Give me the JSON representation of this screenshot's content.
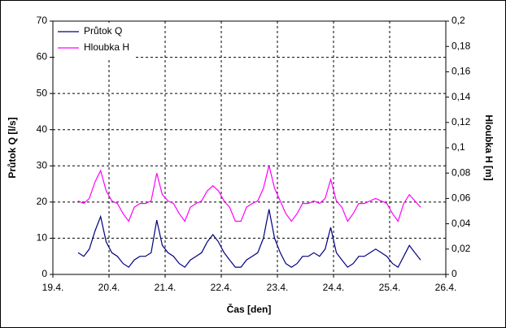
{
  "chart_data": {
    "type": "line",
    "xlabel": "Čas [den]",
    "ylabel": "Průtok Q [l/s]",
    "y2label": "Hloubka H [m]",
    "x": [
      19.45,
      19.55,
      19.65,
      19.75,
      19.85,
      19.95,
      20.05,
      20.15,
      20.25,
      20.35,
      20.45,
      20.55,
      20.65,
      20.75,
      20.85,
      20.95,
      21.05,
      21.15,
      21.25,
      21.35,
      21.45,
      21.55,
      21.65,
      21.75,
      21.85,
      21.95,
      22.05,
      22.15,
      22.25,
      22.35,
      22.45,
      22.55,
      22.65,
      22.75,
      22.85,
      22.95,
      23.05,
      23.15,
      23.25,
      23.35,
      23.45,
      23.55,
      23.65,
      23.75,
      23.85,
      23.95,
      24.05,
      24.15,
      24.25,
      24.35,
      24.45,
      24.55,
      24.65,
      24.75,
      24.85,
      24.95,
      25.05,
      25.15,
      25.25,
      25.35,
      25.45,
      25.55
    ],
    "series": [
      {
        "name": "Průtok Q",
        "color": "#000080",
        "axis": "y",
        "values": [
          6,
          5,
          7,
          12,
          16,
          9,
          6,
          5,
          3,
          2,
          4,
          5,
          5,
          6,
          15,
          8,
          6,
          5,
          3,
          2,
          4,
          5,
          6,
          9,
          11,
          9,
          6,
          4,
          2,
          2,
          4,
          5,
          6,
          10,
          18,
          10,
          6,
          3,
          2,
          3,
          5,
          5,
          6,
          5,
          7,
          13,
          6,
          4,
          2,
          3,
          5,
          5,
          6,
          7,
          6,
          5,
          3,
          2,
          5,
          8,
          6,
          4
        ]
      },
      {
        "name": "Hloubka H",
        "color": "#ff00ff",
        "axis": "y2",
        "values": [
          0.058,
          0.056,
          0.06,
          0.073,
          0.082,
          0.066,
          0.058,
          0.056,
          0.048,
          0.042,
          0.053,
          0.056,
          0.056,
          0.058,
          0.08,
          0.063,
          0.058,
          0.056,
          0.048,
          0.042,
          0.053,
          0.056,
          0.058,
          0.066,
          0.07,
          0.066,
          0.058,
          0.053,
          0.042,
          0.042,
          0.053,
          0.056,
          0.058,
          0.068,
          0.086,
          0.068,
          0.058,
          0.048,
          0.042,
          0.048,
          0.056,
          0.056,
          0.058,
          0.056,
          0.06,
          0.075,
          0.058,
          0.053,
          0.042,
          0.048,
          0.056,
          0.056,
          0.058,
          0.06,
          0.058,
          0.056,
          0.048,
          0.042,
          0.056,
          0.063,
          0.058,
          0.053
        ]
      }
    ],
    "xlim": [
      19,
      26
    ],
    "xticks": [
      {
        "value": 19,
        "label": "19.4."
      },
      {
        "value": 20,
        "label": "20.4."
      },
      {
        "value": 21,
        "label": "21.4."
      },
      {
        "value": 22,
        "label": "22.4."
      },
      {
        "value": 23,
        "label": "23.4."
      },
      {
        "value": 24,
        "label": "24.4."
      },
      {
        "value": 25,
        "label": "25.4."
      },
      {
        "value": 26,
        "label": "26.4."
      }
    ],
    "ylim": [
      0,
      70
    ],
    "yticks": [
      0,
      10,
      20,
      30,
      40,
      50,
      60,
      70
    ],
    "y2lim": [
      0,
      0.2
    ],
    "y2ticks": [
      0,
      {
        "value": 0.02,
        "label": "0,02"
      },
      {
        "value": 0.04,
        "label": "0,04"
      },
      {
        "value": 0.06,
        "label": "0,06"
      },
      {
        "value": 0.08,
        "label": "0,08"
      },
      {
        "value": 0.1,
        "label": "0,1"
      },
      {
        "value": 0.12,
        "label": "0,12"
      },
      {
        "value": 0.14,
        "label": "0,14"
      },
      {
        "value": 0.16,
        "label": "0,16"
      },
      {
        "value": 0.18,
        "label": "0,18"
      },
      {
        "value": 0.2,
        "label": "0,2"
      }
    ],
    "grid": true,
    "legend": "upper left"
  }
}
